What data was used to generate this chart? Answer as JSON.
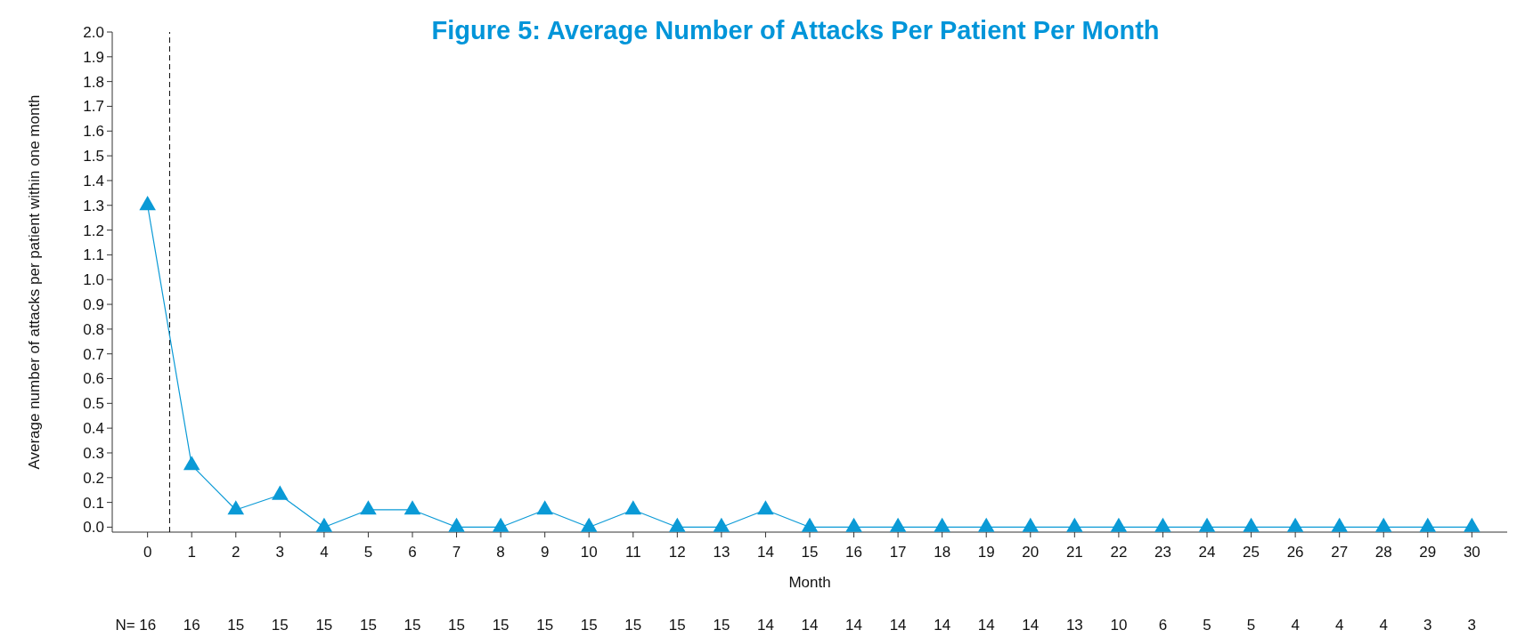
{
  "chart_data": {
    "type": "line",
    "title": "Figure 5: Average Number of Attacks Per Patient Per Month",
    "xlabel": "Month",
    "ylabel": "Average number of attacks per patient within one month",
    "x": [
      0,
      1,
      2,
      3,
      4,
      5,
      6,
      7,
      8,
      9,
      10,
      11,
      12,
      13,
      14,
      15,
      16,
      17,
      18,
      19,
      20,
      21,
      22,
      23,
      24,
      25,
      26,
      27,
      28,
      29,
      30
    ],
    "series": [
      {
        "color": "#0a9ad6",
        "values": [
          1.3,
          0.25,
          0.07,
          0.13,
          0,
          0.07,
          0.07,
          0,
          0,
          0.07,
          0,
          0.07,
          0,
          0,
          0.07,
          0,
          0,
          0,
          0,
          0,
          0,
          0,
          0,
          0,
          0,
          0,
          0,
          0,
          0,
          0,
          0
        ]
      }
    ],
    "xlim": [
      -0.8,
      30.8
    ],
    "xticks": [
      0,
      1,
      2,
      3,
      4,
      5,
      6,
      7,
      8,
      9,
      10,
      11,
      12,
      13,
      14,
      15,
      16,
      17,
      18,
      19,
      20,
      21,
      22,
      23,
      24,
      25,
      26,
      27,
      28,
      29,
      30
    ],
    "ylim": [
      -0.02,
      2.0
    ],
    "yticks": [
      {
        "value": 0,
        "label": "0.0"
      },
      0.1,
      0.2,
      0.3,
      0.4,
      0.5,
      0.6,
      0.7,
      0.8,
      0.9,
      {
        "value": 1,
        "label": "1.0"
      },
      1.1,
      1.2,
      1.3,
      1.4,
      1.5,
      1.6,
      1.7,
      1.8,
      1.9,
      {
        "value": 2,
        "label": "2.0"
      }
    ],
    "ref_lines": [
      {
        "axis": "x",
        "value": 0.5,
        "color": "#000000",
        "line_style": "dashed"
      }
    ],
    "marker": "triangle",
    "line_style": "solid",
    "grid": false,
    "annotations": [
      "N=",
      "16",
      "16",
      "15",
      "15",
      "15",
      "15",
      "15",
      "15",
      "15",
      "15",
      "15",
      "15",
      "15",
      "15",
      "14",
      "14",
      "14",
      "14",
      "14",
      "14",
      "14",
      "13",
      "10",
      "6",
      "5",
      "5",
      "4",
      "4",
      "4",
      "3",
      "3"
    ]
  }
}
